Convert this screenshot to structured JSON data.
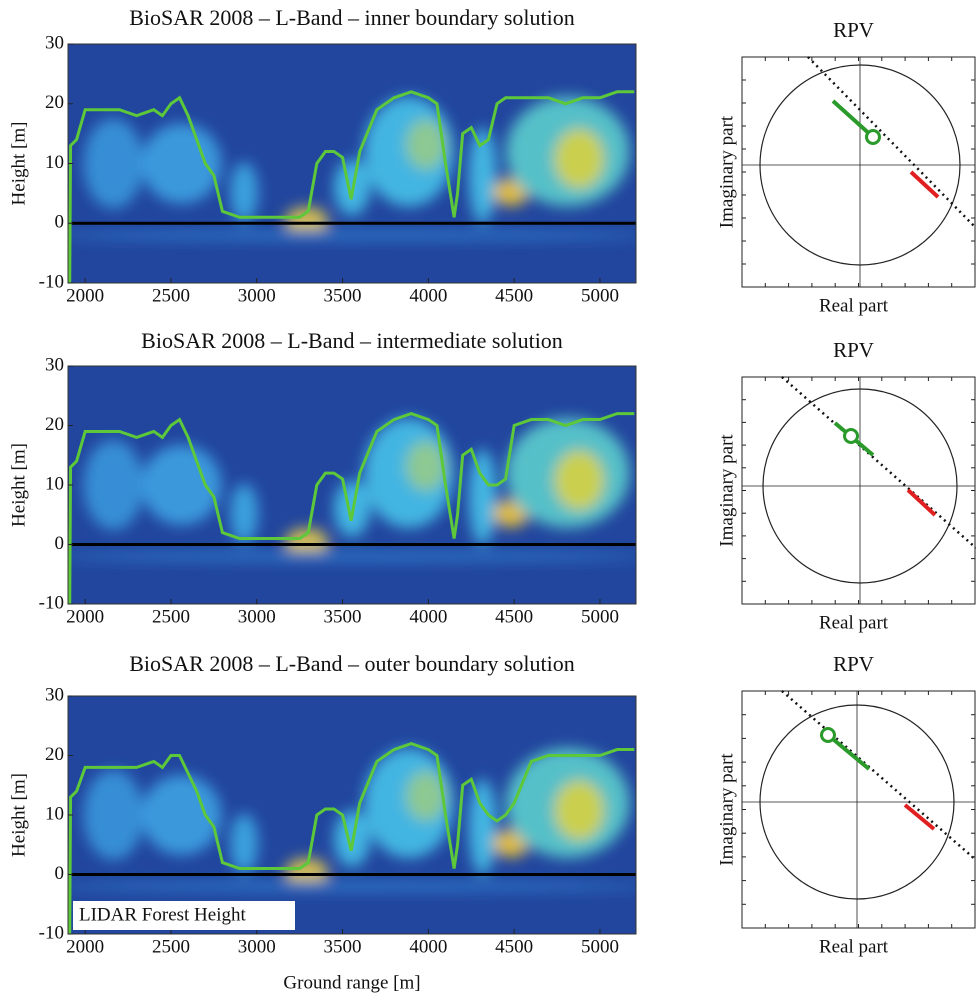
{
  "chart_data": [
    {
      "type": "line",
      "title": "BioSAR 2008  – L-Band – inner boundary solution",
      "ylabel": "Height [m]",
      "xlim": [
        1900,
        5210
      ],
      "ylim": [
        -10,
        30
      ],
      "xticks": [
        2000,
        2500,
        3000,
        3500,
        4000,
        4500,
        5000
      ],
      "yticks": [
        -10,
        0,
        10,
        20,
        30
      ],
      "x": [
        1910,
        1915,
        1950,
        2000,
        2100,
        2200,
        2300,
        2400,
        2450,
        2500,
        2550,
        2600,
        2650,
        2700,
        2750,
        2800,
        2900,
        3000,
        3100,
        3200,
        3250,
        3300,
        3350,
        3400,
        3450,
        3500,
        3550,
        3600,
        3700,
        3800,
        3900,
        4000,
        4050,
        4100,
        4150,
        4170,
        4200,
        4250,
        4300,
        4350,
        4400,
        4450,
        4500,
        4600,
        4700,
        4800,
        4900,
        5000,
        5100,
        5200
      ],
      "series": [
        {
          "color": "#5cc83a",
          "values": [
            -10,
            13,
            14,
            19,
            19,
            19,
            18,
            19,
            18,
            20,
            21,
            18,
            14,
            10,
            8,
            2,
            1,
            1,
            1,
            1,
            1,
            2,
            10,
            12,
            12,
            11,
            4,
            12,
            19,
            21,
            22,
            21,
            20,
            10,
            1,
            5,
            15,
            16,
            13,
            14,
            20,
            21,
            21,
            21,
            21,
            20,
            21,
            21,
            22,
            22
          ]
        }
      ]
    },
    {
      "type": "rpv",
      "title": "RPV",
      "xlabel": "Real part",
      "ylabel": "Imaginary part"
    },
    {
      "type": "line",
      "title": "BioSAR 2008  – L-Band – intermediate solution",
      "ylabel": "Height [m]",
      "xlim": [
        1900,
        5210
      ],
      "ylim": [
        -10,
        30
      ],
      "xticks": [
        2000,
        2500,
        3000,
        3500,
        4000,
        4500,
        5000
      ],
      "yticks": [
        -10,
        0,
        10,
        20,
        30
      ],
      "x": [
        1910,
        1915,
        1950,
        2000,
        2100,
        2200,
        2300,
        2400,
        2450,
        2500,
        2550,
        2600,
        2650,
        2700,
        2750,
        2800,
        2900,
        3000,
        3100,
        3200,
        3250,
        3300,
        3350,
        3400,
        3450,
        3500,
        3550,
        3600,
        3700,
        3800,
        3900,
        4000,
        4050,
        4100,
        4150,
        4170,
        4200,
        4250,
        4300,
        4350,
        4400,
        4450,
        4500,
        4600,
        4700,
        4800,
        4900,
        5000,
        5100,
        5200
      ],
      "series": [
        {
          "color": "#5cc83a",
          "values": [
            -10,
            13,
            14,
            19,
            19,
            19,
            18,
            19,
            18,
            20,
            21,
            18,
            14,
            10,
            8,
            2,
            1,
            1,
            1,
            1,
            1,
            2,
            10,
            12,
            12,
            11,
            4,
            12,
            19,
            21,
            22,
            21,
            20,
            10,
            1,
            5,
            15,
            16,
            12,
            10,
            10,
            11,
            20,
            21,
            21,
            20,
            21,
            21,
            22,
            22
          ]
        }
      ]
    },
    {
      "type": "rpv",
      "title": "RPV",
      "xlabel": "Real part",
      "ylabel": "Imaginary part"
    },
    {
      "type": "line",
      "title": "BioSAR 2008  – L-Band – outer boundary solution",
      "ylabel": "Height [m]",
      "xlabel": "Ground range [m]",
      "xlim": [
        1900,
        5210
      ],
      "ylim": [
        -10,
        30
      ],
      "xticks": [
        2000,
        2500,
        3000,
        3500,
        4000,
        4500,
        5000
      ],
      "yticks": [
        -10,
        0,
        10,
        20,
        30
      ],
      "legend": "lower left",
      "x": [
        1910,
        1915,
        1950,
        2000,
        2100,
        2200,
        2300,
        2400,
        2450,
        2500,
        2550,
        2600,
        2650,
        2700,
        2750,
        2800,
        2900,
        3000,
        3100,
        3200,
        3250,
        3300,
        3350,
        3400,
        3450,
        3500,
        3550,
        3600,
        3700,
        3800,
        3900,
        4000,
        4050,
        4100,
        4150,
        4170,
        4200,
        4250,
        4300,
        4350,
        4400,
        4450,
        4500,
        4600,
        4700,
        4800,
        4900,
        5000,
        5100,
        5200
      ],
      "series": [
        {
          "name": "LIDAR Forest Height",
          "color": "#5cc83a",
          "values": [
            -10,
            13,
            14,
            18,
            18,
            18,
            18,
            19,
            18,
            20,
            20,
            17,
            14,
            10,
            8,
            2,
            1,
            1,
            1,
            1,
            1,
            2,
            10,
            11,
            11,
            10,
            4,
            12,
            19,
            21,
            22,
            21,
            20,
            10,
            1,
            5,
            15,
            16,
            12,
            10,
            9,
            10,
            12,
            19,
            20,
            20,
            20,
            20,
            21,
            21
          ]
        }
      ]
    },
    {
      "type": "rpv",
      "title": "RPV",
      "xlabel": "Real part",
      "ylabel": "Imaginary part"
    }
  ]
}
